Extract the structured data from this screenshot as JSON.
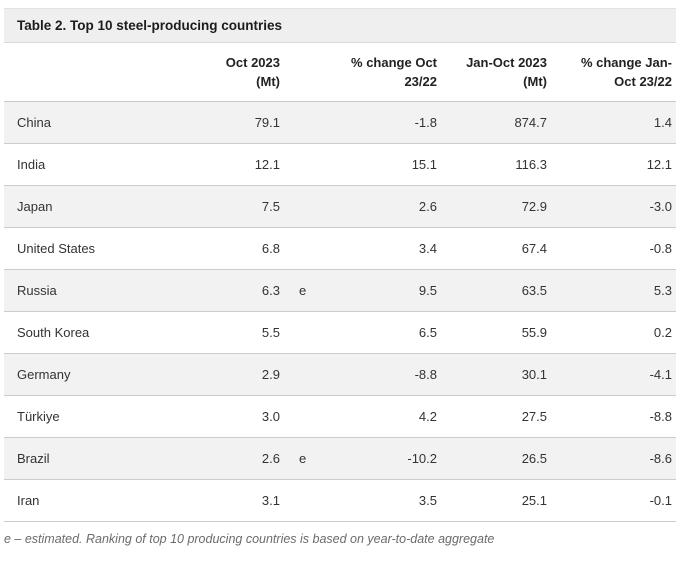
{
  "title": "Table 2. Top 10 steel-producing countries",
  "table": {
    "columns": [
      {
        "line1": "Oct 2023",
        "line2": "(Mt)"
      },
      {
        "line1": "% change Oct",
        "line2": "23/22"
      },
      {
        "line1": "Jan-Oct 2023",
        "line2": "(Mt)"
      },
      {
        "line1": "% change Jan-",
        "line2": "Oct 23/22"
      }
    ],
    "rows": [
      {
        "country": "China",
        "oct_mt": "79.1",
        "estimate": "",
        "pct_oct": "-1.8",
        "jan_oct_mt": "874.7",
        "pct_jan_oct": "1.4"
      },
      {
        "country": "India",
        "oct_mt": "12.1",
        "estimate": "",
        "pct_oct": "15.1",
        "jan_oct_mt": "116.3",
        "pct_jan_oct": "12.1"
      },
      {
        "country": "Japan",
        "oct_mt": "7.5",
        "estimate": "",
        "pct_oct": "2.6",
        "jan_oct_mt": "72.9",
        "pct_jan_oct": "-3.0"
      },
      {
        "country": "United States",
        "oct_mt": "6.8",
        "estimate": "",
        "pct_oct": "3.4",
        "jan_oct_mt": "67.4",
        "pct_jan_oct": "-0.8"
      },
      {
        "country": "Russia",
        "oct_mt": "6.3",
        "estimate": "e",
        "pct_oct": "9.5",
        "jan_oct_mt": "63.5",
        "pct_jan_oct": "5.3"
      },
      {
        "country": "South Korea",
        "oct_mt": "5.5",
        "estimate": "",
        "pct_oct": "6.5",
        "jan_oct_mt": "55.9",
        "pct_jan_oct": "0.2"
      },
      {
        "country": "Germany",
        "oct_mt": "2.9",
        "estimate": "",
        "pct_oct": "-8.8",
        "jan_oct_mt": "30.1",
        "pct_jan_oct": "-4.1"
      },
      {
        "country": "Türkiye",
        "oct_mt": "3.0",
        "estimate": "",
        "pct_oct": "4.2",
        "jan_oct_mt": "27.5",
        "pct_jan_oct": "-8.8"
      },
      {
        "country": "Brazil",
        "oct_mt": "2.6",
        "estimate": "e",
        "pct_oct": "-10.2",
        "jan_oct_mt": "26.5",
        "pct_jan_oct": "-8.6"
      },
      {
        "country": "Iran",
        "oct_mt": "3.1",
        "estimate": "",
        "pct_oct": "3.5",
        "jan_oct_mt": "25.1",
        "pct_jan_oct": "-0.1"
      }
    ]
  },
  "footnote": "e – estimated. Ranking of top 10 producing countries is based on year-to-date aggregate",
  "colors": {
    "title_bar_bg": "#efefef",
    "stripe_bg": "#f2f2f2",
    "border": "#cccccc",
    "text": "#333333",
    "footnote_text": "#6b6b6b"
  }
}
